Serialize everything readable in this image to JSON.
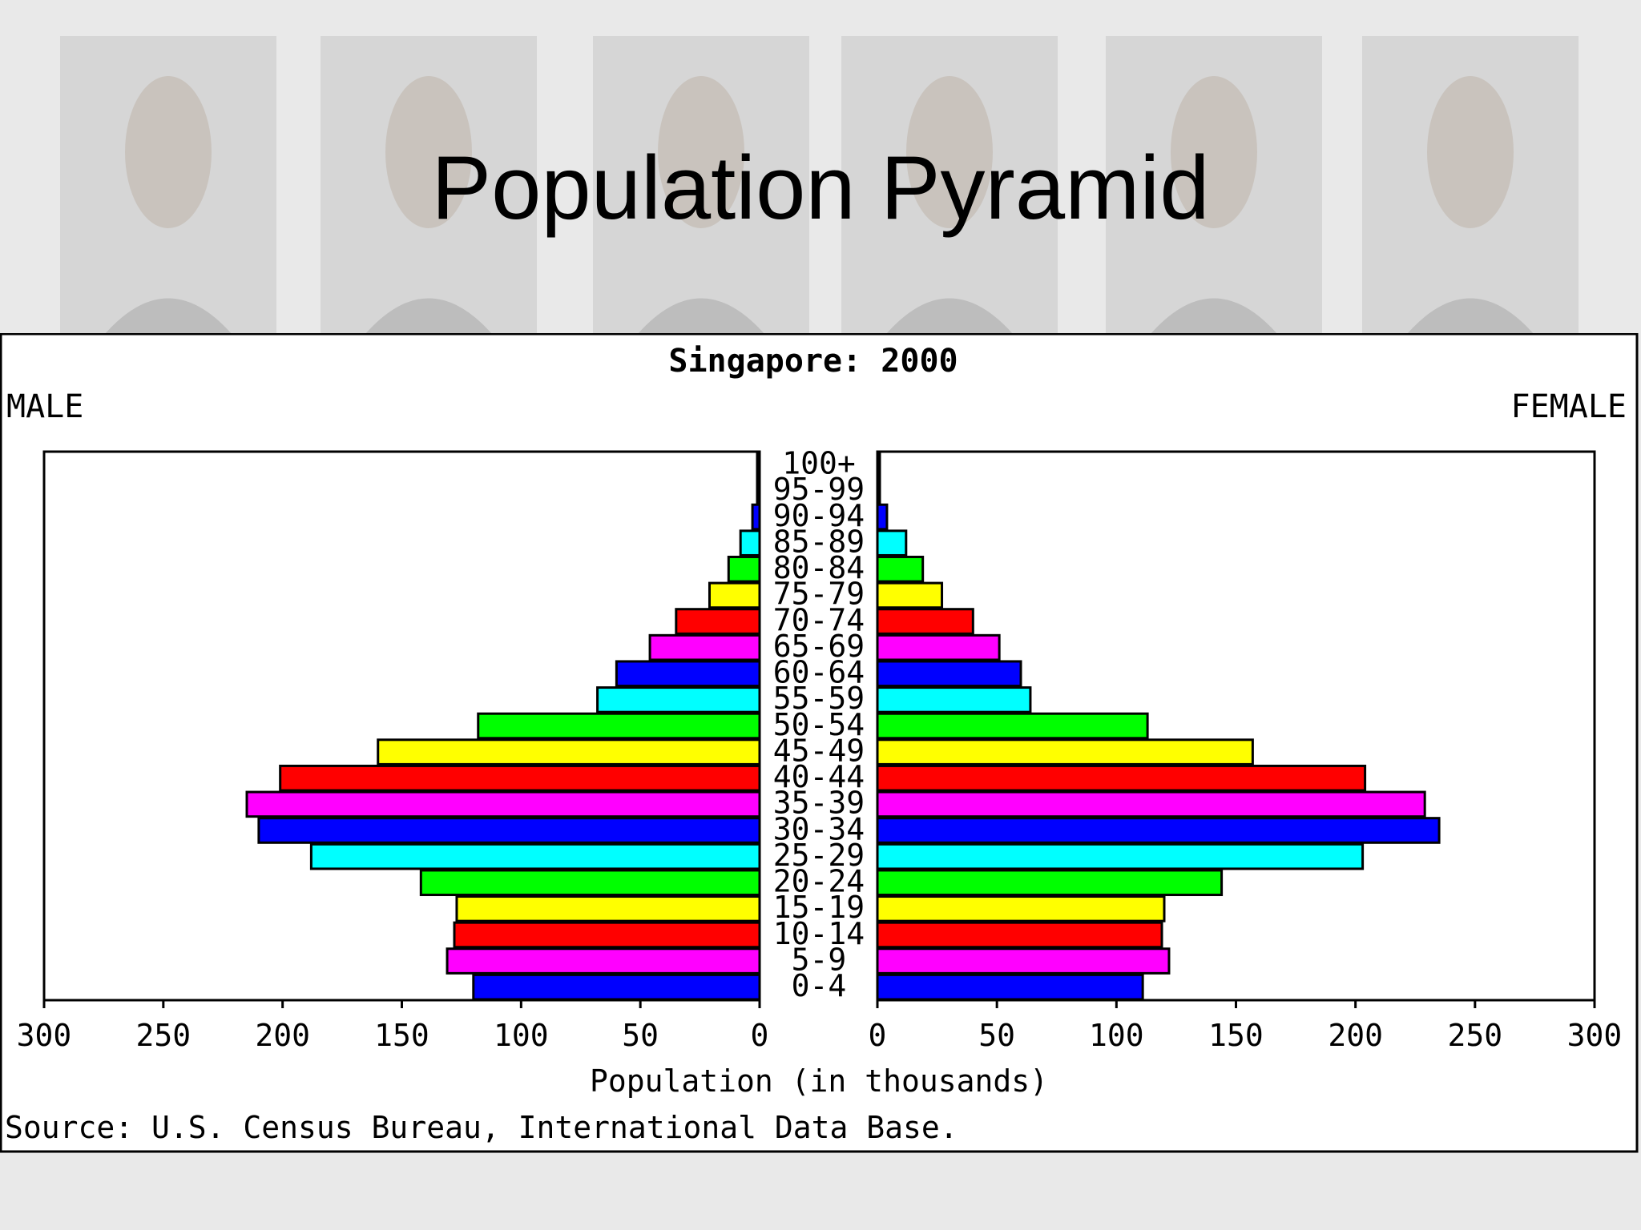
{
  "slide": {
    "title": "Population Pyramid"
  },
  "chart_data": {
    "type": "bar",
    "subtype": "population-pyramid",
    "title": "Singapore: 2000",
    "left_label": "MALE",
    "right_label": "FEMALE",
    "xlabel": "Population (in thousands)",
    "source": "Source: U.S. Census Bureau, International Data Base.",
    "xlim": [
      0,
      300
    ],
    "xticks": [
      300,
      250,
      200,
      150,
      100,
      50,
      0
    ],
    "categories": [
      "100+",
      "95-99",
      "90-94",
      "85-89",
      "80-84",
      "75-79",
      "70-74",
      "65-69",
      "60-64",
      "55-59",
      "50-54",
      "45-49",
      "40-44",
      "35-39",
      "30-34",
      "25-29",
      "20-24",
      "15-19",
      "10-14",
      "5-9",
      "0-4"
    ],
    "series": [
      {
        "name": "MALE",
        "values": [
          0.5,
          1,
          3,
          8,
          13,
          21,
          35,
          46,
          60,
          68,
          118,
          160,
          201,
          215,
          210,
          188,
          142,
          127,
          128,
          131,
          120
        ]
      },
      {
        "name": "FEMALE",
        "values": [
          0.5,
          1,
          4,
          12,
          19,
          27,
          40,
          51,
          60,
          64,
          113,
          157,
          204,
          229,
          235,
          203,
          144,
          120,
          119,
          122,
          111
        ]
      }
    ],
    "colors": [
      "#0000ff",
      "#ff00ff",
      "#ff0000",
      "#ffff00",
      "#00ff00",
      "#00ffff"
    ],
    "grid": false
  }
}
